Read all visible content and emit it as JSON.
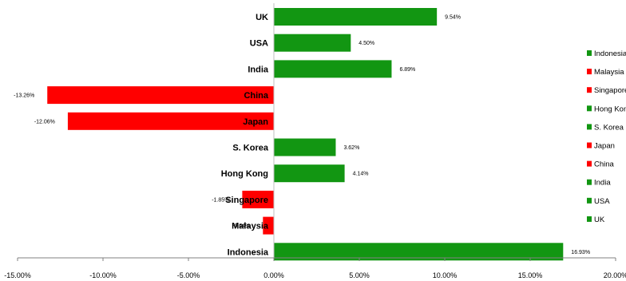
{
  "chart_data": {
    "type": "bar",
    "orientation": "horizontal",
    "categories": [
      "UK",
      "USA",
      "India",
      "China",
      "Japan",
      "S. Korea",
      "Hong Kong",
      "Singapore",
      "Malaysia",
      "Indonesia"
    ],
    "values": [
      9.54,
      4.5,
      6.89,
      -13.26,
      -12.06,
      3.62,
      4.14,
      -1.85,
      -0.64,
      16.93
    ],
    "value_labels": [
      "9.54%",
      "4.50%",
      "6.89%",
      "-13.26%",
      "-12.06%",
      "3.62%",
      "4.14%",
      "-1.85%",
      "-0.64%",
      "16.93%"
    ],
    "xlim": [
      -15,
      20
    ],
    "xticks": [
      -15,
      -10,
      -5,
      0,
      5,
      10,
      15,
      20
    ],
    "xtick_labels": [
      "-15.00%",
      "-10.00%",
      "-5.00%",
      "0.00%",
      "5.00%",
      "10.00%",
      "15.00%",
      "20.00%"
    ],
    "grid": false,
    "legend_position": "right",
    "legend": [
      "Indonesia",
      "Malaysia",
      "Singapore",
      "Hong Kong",
      "S. Korea",
      "Japan",
      "China",
      "India",
      "USA",
      "UK"
    ],
    "positive_color": "#129612",
    "negative_color": "#ff0000"
  }
}
